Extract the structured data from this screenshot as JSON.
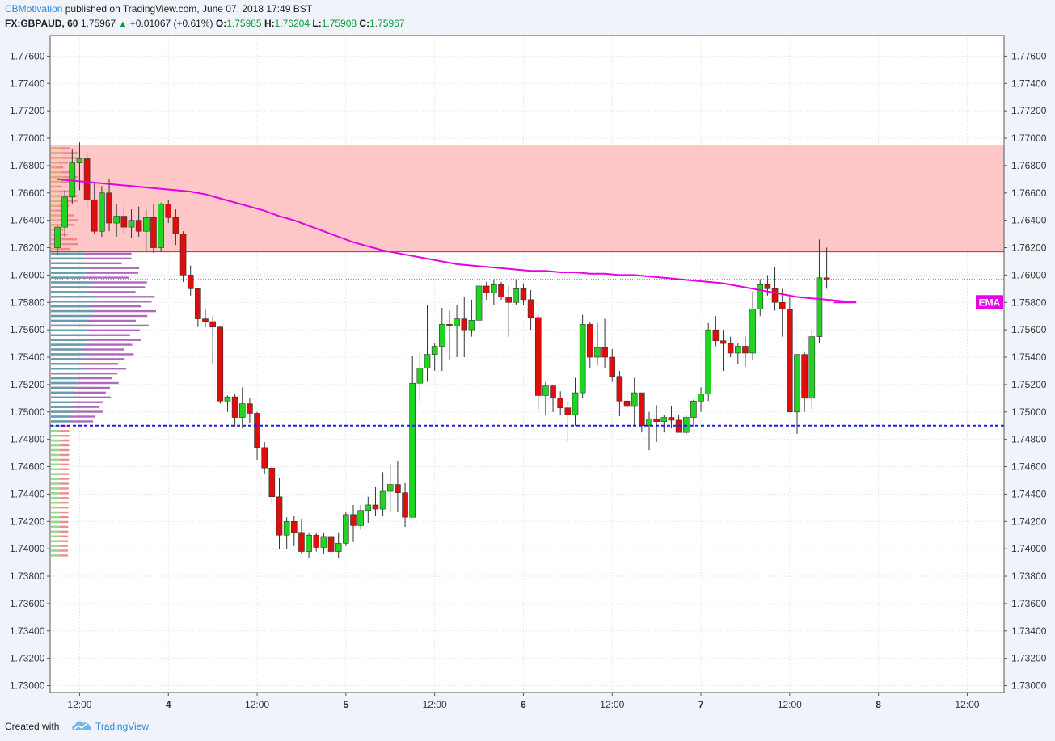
{
  "header": {
    "author": "CBMotivation",
    "published_text": "published on TradingView.com, June 07, 2018 17:49 BST",
    "symbol": "FX:GBPAUD, 60",
    "last": "1.75967",
    "change": "+0.01067 (+0.61%)",
    "o_label": "O:",
    "o_value": "1.75985",
    "h_label": "H:",
    "h_value": "1.76204",
    "l_label": "L:",
    "l_value": "1.75908",
    "c_label": "C:",
    "c_value": "1.75967"
  },
  "footer": {
    "created_with": "Created with",
    "brand": "TradingView"
  },
  "colors": {
    "up": "#21d421",
    "down": "#e00d0d",
    "ema": "#e600e6",
    "zone_fill": "#ffc4c4",
    "zone_border": "#e02020",
    "support": "#1a1aff",
    "current_price_line": "#b00000"
  },
  "chart_data": {
    "type": "candlestick",
    "symbol": "FX:GBPAUD",
    "timeframe": "60",
    "ylim": [
      1.7295,
      1.7775
    ],
    "y_ticks": [
      "1.73000",
      "1.73200",
      "1.73400",
      "1.73600",
      "1.73800",
      "1.74000",
      "1.74200",
      "1.74400",
      "1.74600",
      "1.74800",
      "1.75000",
      "1.75200",
      "1.75400",
      "1.75600",
      "1.75800",
      "1.76000",
      "1.76200",
      "1.76400",
      "1.76600",
      "1.76800",
      "1.77000",
      "1.77200",
      "1.77400",
      "1.77600"
    ],
    "x_labels": [
      {
        "label": "12:00",
        "bar": 3
      },
      {
        "label": "4",
        "bar": 15
      },
      {
        "label": "12:00",
        "bar": 27
      },
      {
        "label": "5",
        "bar": 39
      },
      {
        "label": "12:00",
        "bar": 51
      },
      {
        "label": "6",
        "bar": 63
      },
      {
        "label": "12:00",
        "bar": 75
      },
      {
        "label": "7",
        "bar": 87
      },
      {
        "label": "12:00",
        "bar": 99
      },
      {
        "label": "8",
        "bar": 111
      },
      {
        "label": "12:00",
        "bar": 123
      }
    ],
    "bars_total": 130,
    "candles": [
      [
        1.762,
        1.7636,
        1.7615,
        1.7635
      ],
      [
        1.7635,
        1.7662,
        1.7628,
        1.7657
      ],
      [
        1.7657,
        1.7692,
        1.7652,
        1.7682
      ],
      [
        1.7682,
        1.7697,
        1.7662,
        1.7685
      ],
      [
        1.7685,
        1.769,
        1.7648,
        1.7655
      ],
      [
        1.7655,
        1.7668,
        1.763,
        1.7632
      ],
      [
        1.7632,
        1.7665,
        1.7628,
        1.766
      ],
      [
        1.766,
        1.767,
        1.7632,
        1.7638
      ],
      [
        1.7638,
        1.7652,
        1.7628,
        1.7643
      ],
      [
        1.7643,
        1.765,
        1.763,
        1.7635
      ],
      [
        1.7635,
        1.7648,
        1.7627,
        1.764
      ],
      [
        1.764,
        1.765,
        1.7628,
        1.7632
      ],
      [
        1.7632,
        1.7648,
        1.7618,
        1.7642
      ],
      [
        1.7642,
        1.7652,
        1.7616,
        1.762
      ],
      [
        1.762,
        1.7653,
        1.7617,
        1.7652
      ],
      [
        1.7652,
        1.7655,
        1.7638,
        1.7642
      ],
      [
        1.7642,
        1.7648,
        1.7622,
        1.763
      ],
      [
        1.763,
        1.7632,
        1.7595,
        1.76
      ],
      [
        1.76,
        1.7607,
        1.7585,
        1.759
      ],
      [
        1.759,
        1.759,
        1.7562,
        1.7568
      ],
      [
        1.7568,
        1.7575,
        1.7562,
        1.7566
      ],
      [
        1.7566,
        1.757,
        1.7535,
        1.7562
      ],
      [
        1.7562,
        1.7563,
        1.7506,
        1.7508
      ],
      [
        1.7508,
        1.7512,
        1.75,
        1.7511
      ],
      [
        1.7511,
        1.7513,
        1.7489,
        1.7496
      ],
      [
        1.7496,
        1.7518,
        1.7488,
        1.7506
      ],
      [
        1.7506,
        1.751,
        1.7492,
        1.7499
      ],
      [
        1.7499,
        1.75,
        1.7465,
        1.7474
      ],
      [
        1.7474,
        1.7478,
        1.7455,
        1.7459
      ],
      [
        1.7459,
        1.746,
        1.7433,
        1.7438
      ],
      [
        1.7438,
        1.7452,
        1.74,
        1.741
      ],
      [
        1.741,
        1.7423,
        1.74,
        1.742
      ],
      [
        1.742,
        1.7424,
        1.7402,
        1.7412
      ],
      [
        1.7412,
        1.7422,
        1.7396,
        1.7398
      ],
      [
        1.7398,
        1.7412,
        1.7393,
        1.741
      ],
      [
        1.741,
        1.7412,
        1.7398,
        1.7401
      ],
      [
        1.7401,
        1.7412,
        1.7396,
        1.7409
      ],
      [
        1.7409,
        1.7412,
        1.7394,
        1.7398
      ],
      [
        1.7398,
        1.7412,
        1.7393,
        1.7404
      ],
      [
        1.7404,
        1.7427,
        1.7402,
        1.7425
      ],
      [
        1.7425,
        1.7432,
        1.7405,
        1.7417
      ],
      [
        1.7417,
        1.7432,
        1.7414,
        1.7428
      ],
      [
        1.7428,
        1.7438,
        1.7419,
        1.7432
      ],
      [
        1.7432,
        1.7445,
        1.7424,
        1.7429
      ],
      [
        1.7429,
        1.7456,
        1.7424,
        1.7442
      ],
      [
        1.7442,
        1.7462,
        1.7427,
        1.7447
      ],
      [
        1.7447,
        1.7464,
        1.7427,
        1.7441
      ],
      [
        1.7441,
        1.7448,
        1.7416,
        1.7423
      ],
      [
        1.7423,
        1.7541,
        1.7423,
        1.7521
      ],
      [
        1.7521,
        1.7543,
        1.7508,
        1.7532
      ],
      [
        1.7532,
        1.7578,
        1.7522,
        1.7542
      ],
      [
        1.7542,
        1.755,
        1.753,
        1.7548
      ],
      [
        1.7548,
        1.7576,
        1.753,
        1.7564
      ],
      [
        1.7564,
        1.7574,
        1.7538,
        1.7563
      ],
      [
        1.7563,
        1.7578,
        1.754,
        1.7568
      ],
      [
        1.7568,
        1.7584,
        1.754,
        1.756
      ],
      [
        1.756,
        1.7582,
        1.7555,
        1.7567
      ],
      [
        1.7567,
        1.7597,
        1.7562,
        1.7592
      ],
      [
        1.7592,
        1.7595,
        1.7582,
        1.7587
      ],
      [
        1.7587,
        1.7597,
        1.7578,
        1.7593
      ],
      [
        1.7593,
        1.7595,
        1.7582,
        1.7584
      ],
      [
        1.7584,
        1.7592,
        1.7555,
        1.758
      ],
      [
        1.758,
        1.7597,
        1.7578,
        1.759
      ],
      [
        1.759,
        1.7594,
        1.7578,
        1.7582
      ],
      [
        1.7582,
        1.7589,
        1.756,
        1.7569
      ],
      [
        1.7569,
        1.7571,
        1.7502,
        1.7512
      ],
      [
        1.7512,
        1.7522,
        1.7498,
        1.7519
      ],
      [
        1.7519,
        1.752,
        1.75,
        1.751
      ],
      [
        1.751,
        1.7515,
        1.7498,
        1.7503
      ],
      [
        1.7503,
        1.7508,
        1.7478,
        1.7498
      ],
      [
        1.7498,
        1.7525,
        1.749,
        1.7514
      ],
      [
        1.7514,
        1.7571,
        1.751,
        1.7564
      ],
      [
        1.7564,
        1.7566,
        1.7532,
        1.754
      ],
      [
        1.754,
        1.7565,
        1.7534,
        1.7547
      ],
      [
        1.7547,
        1.7568,
        1.7532,
        1.754
      ],
      [
        1.754,
        1.7546,
        1.7522,
        1.7526
      ],
      [
        1.7526,
        1.753,
        1.7497,
        1.7508
      ],
      [
        1.7508,
        1.752,
        1.7496,
        1.7504
      ],
      [
        1.7504,
        1.7525,
        1.749,
        1.7514
      ],
      [
        1.7514,
        1.7514,
        1.7485,
        1.749
      ],
      [
        1.749,
        1.75,
        1.7472,
        1.7495
      ],
      [
        1.7495,
        1.7505,
        1.7478,
        1.7493
      ],
      [
        1.7493,
        1.7498,
        1.7485,
        1.7496
      ],
      [
        1.7496,
        1.7504,
        1.7488,
        1.7494
      ],
      [
        1.7494,
        1.7498,
        1.7486,
        1.7485
      ],
      [
        1.7485,
        1.7498,
        1.7483,
        1.7496
      ],
      [
        1.7496,
        1.7509,
        1.7489,
        1.7508
      ],
      [
        1.7508,
        1.7518,
        1.75,
        1.7513
      ],
      [
        1.7513,
        1.7565,
        1.7508,
        1.756
      ],
      [
        1.756,
        1.757,
        1.7548,
        1.7552
      ],
      [
        1.7552,
        1.756,
        1.753,
        1.755
      ],
      [
        1.755,
        1.7555,
        1.754,
        1.7543
      ],
      [
        1.7543,
        1.755,
        1.7535,
        1.7548
      ],
      [
        1.7548,
        1.7555,
        1.7533,
        1.7543
      ],
      [
        1.7543,
        1.7588,
        1.7538,
        1.7575
      ],
      [
        1.7575,
        1.7597,
        1.757,
        1.7593
      ],
      [
        1.7593,
        1.76,
        1.7585,
        1.759
      ],
      [
        1.759,
        1.7606,
        1.7574,
        1.758
      ],
      [
        1.758,
        1.759,
        1.7555,
        1.7575
      ],
      [
        1.7575,
        1.7584,
        1.75,
        1.75
      ],
      [
        1.75,
        1.754,
        1.7484,
        1.7542
      ],
      [
        1.7542,
        1.7544,
        1.75,
        1.751
      ],
      [
        1.751,
        1.756,
        1.7502,
        1.7555
      ],
      [
        1.7555,
        1.7626,
        1.755,
        1.7598
      ],
      [
        1.7598,
        1.762,
        1.759,
        1.7597
      ]
    ],
    "ema_label": "EMA",
    "ema": [
      1.767,
      1.7669,
      1.7668,
      1.7667,
      1.7666,
      1.7665,
      1.7664,
      1.7663,
      1.7662,
      1.7661,
      1.7659,
      1.7656,
      1.7653,
      1.765,
      1.7647,
      1.7643,
      1.764,
      1.7636,
      1.7632,
      1.7628,
      1.7624,
      1.7621,
      1.7618,
      1.7616,
      1.7614,
      1.7612,
      1.761,
      1.7608,
      1.7607,
      1.7606,
      1.7605,
      1.7604,
      1.7603,
      1.7603,
      1.7602,
      1.7602,
      1.7601,
      1.7601,
      1.76,
      1.76,
      1.7599,
      1.7598,
      1.7597,
      1.7596,
      1.7595,
      1.7594,
      1.7592,
      1.759,
      1.7588,
      1.7586,
      1.7584,
      1.7583,
      1.7582,
      1.7581,
      1.758
    ],
    "ema_start_bar": 0,
    "ema_step": 2,
    "resistance_zone": [
      1.7617,
      1.7695
    ],
    "support_level": 1.749,
    "current_price": 1.75967
  }
}
